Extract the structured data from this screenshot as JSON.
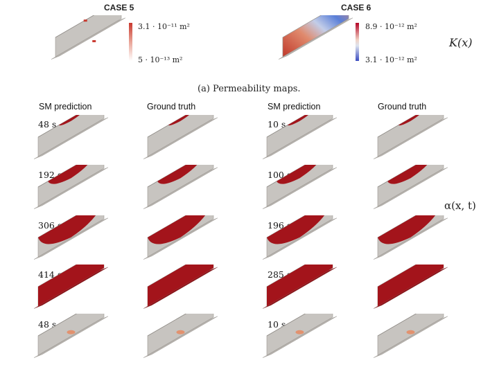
{
  "figure": {
    "permeability": {
      "case5": {
        "title": "CASE 5",
        "colorbar_max": "3.1 · 10⁻¹¹ m²",
        "colorbar_min": "5 · 10⁻¹³ m²"
      },
      "case6": {
        "title": "CASE 6",
        "colorbar_max": "8.9 · 10⁻¹² m²",
        "colorbar_min": "3.1 · 10⁻¹² m²"
      },
      "row_label": "K(x)",
      "caption": "(a) Permeability maps."
    },
    "columns": [
      "SM prediction",
      "Ground truth",
      "SM prediction",
      "Ground truth"
    ],
    "row_label": "α(x, t)",
    "case5_times": [
      "48 s",
      "192 s",
      "306 s",
      "414 s",
      "48 s"
    ],
    "case6_times": [
      "10 s",
      "100 s",
      "196 s",
      "285 s",
      "10 s"
    ],
    "fill_fractions": [
      0.12,
      0.42,
      0.78,
      1.0,
      0.0
    ]
  },
  "colors": {
    "part_gray": "#c7c4c0",
    "part_edge": "#9c9893",
    "fill_red": "#a3141b",
    "permeability_red": "#c9392f",
    "permeability_blue": "#5a7fd8"
  }
}
